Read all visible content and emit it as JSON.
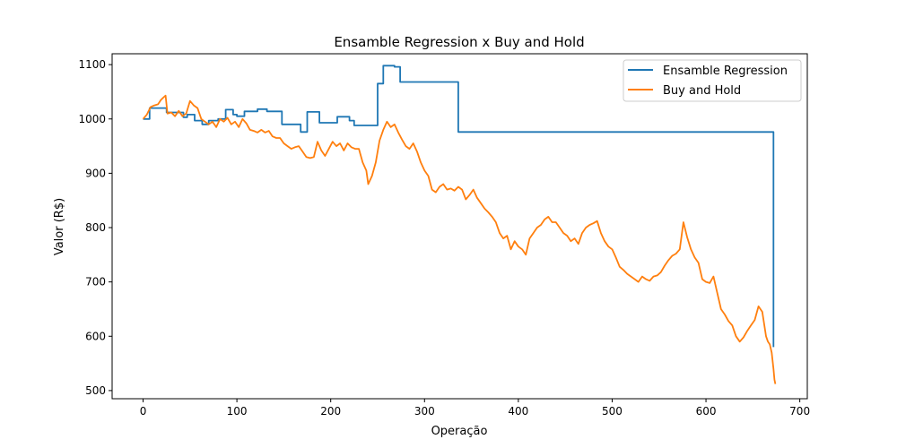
{
  "chart_data": {
    "type": "line",
    "title": "Ensamble Regression x Buy and Hold",
    "xlabel": "Operação",
    "ylabel": "Valor (R$)",
    "xlim": [
      -33,
      708
    ],
    "ylim": [
      485,
      1120
    ],
    "x_ticks": [
      0,
      100,
      200,
      300,
      400,
      500,
      600,
      700
    ],
    "y_ticks": [
      500,
      600,
      700,
      800,
      900,
      1000,
      1100
    ],
    "grid": false,
    "legend": "top-right",
    "series": [
      {
        "name": "Ensamble Regression",
        "color": "#1f77b4",
        "points": [
          [
            0,
            1000
          ],
          [
            7,
            1000
          ],
          [
            7,
            1020
          ],
          [
            25,
            1020
          ],
          [
            25,
            1012
          ],
          [
            43,
            1012
          ],
          [
            43,
            1003
          ],
          [
            47,
            1003
          ],
          [
            47,
            1008
          ],
          [
            55,
            1008
          ],
          [
            55,
            997
          ],
          [
            63,
            997
          ],
          [
            63,
            990
          ],
          [
            70,
            990
          ],
          [
            70,
            997
          ],
          [
            80,
            997
          ],
          [
            80,
            1000
          ],
          [
            88,
            1000
          ],
          [
            88,
            1017
          ],
          [
            96,
            1017
          ],
          [
            96,
            1008
          ],
          [
            100,
            1008
          ],
          [
            100,
            1005
          ],
          [
            108,
            1005
          ],
          [
            108,
            1014
          ],
          [
            122,
            1014
          ],
          [
            122,
            1018
          ],
          [
            132,
            1018
          ],
          [
            132,
            1014
          ],
          [
            148,
            1014
          ],
          [
            148,
            990
          ],
          [
            168,
            990
          ],
          [
            168,
            976
          ],
          [
            175,
            976
          ],
          [
            175,
            1013
          ],
          [
            188,
            1013
          ],
          [
            188,
            993
          ],
          [
            207,
            993
          ],
          [
            207,
            1004
          ],
          [
            220,
            1004
          ],
          [
            220,
            997
          ],
          [
            225,
            997
          ],
          [
            225,
            988
          ],
          [
            250,
            988
          ],
          [
            250,
            1065
          ],
          [
            256,
            1065
          ],
          [
            256,
            1098
          ],
          [
            268,
            1098
          ],
          [
            268,
            1096
          ],
          [
            274,
            1096
          ],
          [
            274,
            1068
          ],
          [
            336,
            1068
          ],
          [
            336,
            976
          ],
          [
            672,
            976
          ],
          [
            672,
            580
          ]
        ]
      },
      {
        "name": "Buy and Hold",
        "color": "#ff7f0e",
        "points": [
          [
            0,
            1000
          ],
          [
            4,
            1008
          ],
          [
            8,
            1022
          ],
          [
            12,
            1025
          ],
          [
            16,
            1027
          ],
          [
            19,
            1035
          ],
          [
            22,
            1040
          ],
          [
            24,
            1043
          ],
          [
            26,
            1010
          ],
          [
            30,
            1012
          ],
          [
            34,
            1005
          ],
          [
            38,
            1015
          ],
          [
            42,
            1005
          ],
          [
            46,
            1010
          ],
          [
            50,
            1033
          ],
          [
            54,
            1025
          ],
          [
            58,
            1020
          ],
          [
            62,
            1000
          ],
          [
            66,
            995
          ],
          [
            70,
            990
          ],
          [
            74,
            995
          ],
          [
            78,
            985
          ],
          [
            82,
            1000
          ],
          [
            86,
            995
          ],
          [
            90,
            1002
          ],
          [
            94,
            990
          ],
          [
            98,
            995
          ],
          [
            102,
            985
          ],
          [
            106,
            1000
          ],
          [
            110,
            992
          ],
          [
            114,
            980
          ],
          [
            118,
            978
          ],
          [
            122,
            975
          ],
          [
            126,
            980
          ],
          [
            130,
            975
          ],
          [
            134,
            978
          ],
          [
            138,
            968
          ],
          [
            142,
            965
          ],
          [
            146,
            965
          ],
          [
            150,
            955
          ],
          [
            154,
            950
          ],
          [
            158,
            945
          ],
          [
            162,
            948
          ],
          [
            166,
            950
          ],
          [
            170,
            940
          ],
          [
            174,
            930
          ],
          [
            178,
            928
          ],
          [
            182,
            930
          ],
          [
            186,
            958
          ],
          [
            190,
            942
          ],
          [
            194,
            932
          ],
          [
            198,
            945
          ],
          [
            202,
            958
          ],
          [
            206,
            950
          ],
          [
            210,
            955
          ],
          [
            214,
            942
          ],
          [
            218,
            955
          ],
          [
            222,
            948
          ],
          [
            226,
            945
          ],
          [
            230,
            945
          ],
          [
            234,
            920
          ],
          [
            238,
            905
          ],
          [
            240,
            880
          ],
          [
            244,
            895
          ],
          [
            248,
            920
          ],
          [
            252,
            960
          ],
          [
            256,
            980
          ],
          [
            260,
            995
          ],
          [
            264,
            985
          ],
          [
            268,
            990
          ],
          [
            272,
            975
          ],
          [
            276,
            962
          ],
          [
            280,
            950
          ],
          [
            284,
            945
          ],
          [
            288,
            955
          ],
          [
            292,
            940
          ],
          [
            296,
            920
          ],
          [
            300,
            905
          ],
          [
            304,
            895
          ],
          [
            308,
            870
          ],
          [
            312,
            865
          ],
          [
            316,
            875
          ],
          [
            320,
            880
          ],
          [
            324,
            870
          ],
          [
            328,
            872
          ],
          [
            332,
            868
          ],
          [
            336,
            875
          ],
          [
            340,
            870
          ],
          [
            344,
            852
          ],
          [
            348,
            860
          ],
          [
            352,
            870
          ],
          [
            356,
            855
          ],
          [
            360,
            845
          ],
          [
            364,
            835
          ],
          [
            368,
            828
          ],
          [
            372,
            820
          ],
          [
            376,
            810
          ],
          [
            380,
            790
          ],
          [
            384,
            780
          ],
          [
            388,
            785
          ],
          [
            392,
            760
          ],
          [
            396,
            775
          ],
          [
            400,
            765
          ],
          [
            404,
            760
          ],
          [
            408,
            750
          ],
          [
            412,
            780
          ],
          [
            416,
            790
          ],
          [
            420,
            800
          ],
          [
            424,
            805
          ],
          [
            428,
            815
          ],
          [
            432,
            820
          ],
          [
            436,
            810
          ],
          [
            440,
            810
          ],
          [
            444,
            800
          ],
          [
            448,
            790
          ],
          [
            452,
            785
          ],
          [
            456,
            775
          ],
          [
            460,
            780
          ],
          [
            464,
            770
          ],
          [
            468,
            790
          ],
          [
            472,
            800
          ],
          [
            476,
            805
          ],
          [
            480,
            808
          ],
          [
            484,
            812
          ],
          [
            488,
            790
          ],
          [
            492,
            775
          ],
          [
            496,
            765
          ],
          [
            500,
            760
          ],
          [
            504,
            745
          ],
          [
            508,
            728
          ],
          [
            512,
            722
          ],
          [
            516,
            715
          ],
          [
            520,
            710
          ],
          [
            524,
            705
          ],
          [
            528,
            700
          ],
          [
            532,
            710
          ],
          [
            536,
            705
          ],
          [
            540,
            702
          ],
          [
            544,
            710
          ],
          [
            548,
            712
          ],
          [
            552,
            718
          ],
          [
            556,
            730
          ],
          [
            560,
            740
          ],
          [
            564,
            748
          ],
          [
            568,
            752
          ],
          [
            572,
            760
          ],
          [
            576,
            810
          ],
          [
            580,
            782
          ],
          [
            584,
            760
          ],
          [
            588,
            745
          ],
          [
            592,
            735
          ],
          [
            596,
            705
          ],
          [
            600,
            700
          ],
          [
            604,
            698
          ],
          [
            608,
            710
          ],
          [
            612,
            680
          ],
          [
            616,
            650
          ],
          [
            620,
            640
          ],
          [
            624,
            628
          ],
          [
            628,
            620
          ],
          [
            632,
            600
          ],
          [
            636,
            590
          ],
          [
            640,
            598
          ],
          [
            644,
            610
          ],
          [
            648,
            620
          ],
          [
            652,
            630
          ],
          [
            656,
            655
          ],
          [
            660,
            645
          ],
          [
            664,
            600
          ],
          [
            666,
            590
          ],
          [
            668,
            585
          ],
          [
            670,
            570
          ],
          [
            672,
            540
          ],
          [
            673,
            520
          ],
          [
            674,
            512
          ]
        ]
      }
    ]
  }
}
